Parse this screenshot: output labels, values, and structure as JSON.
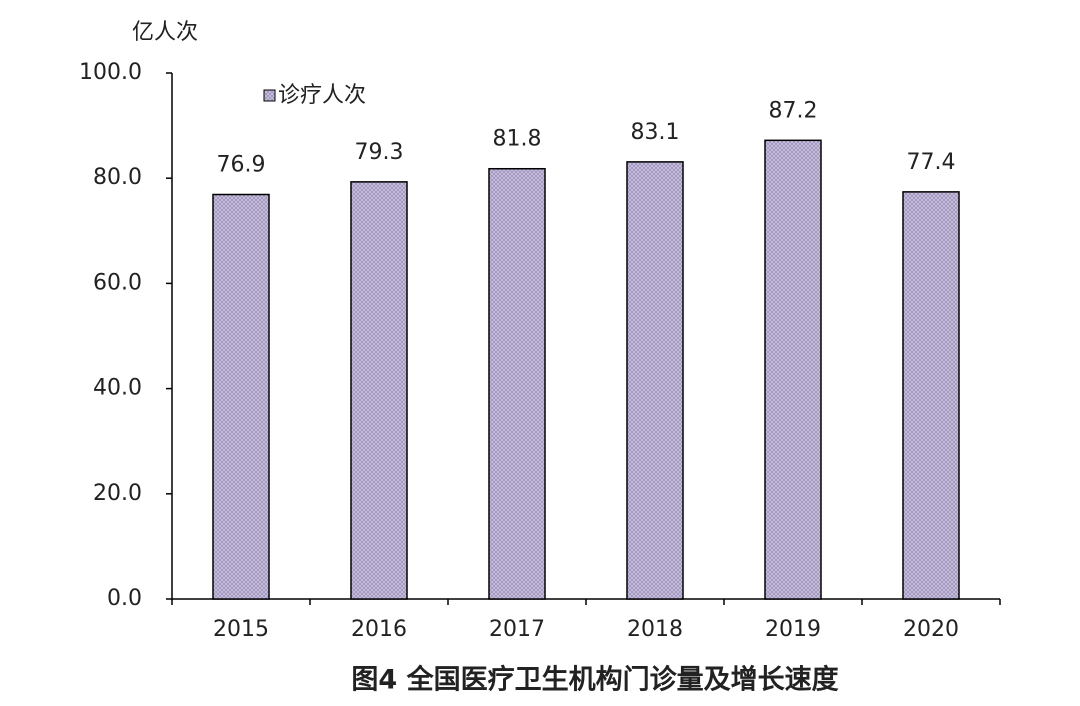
{
  "chart_data": {
    "type": "bar",
    "title": "图4  全国医疗卫生机构门诊量及增长速度",
    "y_label": "亿人次",
    "categories": [
      "2015",
      "2016",
      "2017",
      "2018",
      "2019",
      "2020"
    ],
    "series": [
      {
        "name": "诊疗人次",
        "color": "#c9c0e0",
        "values": [
          76.9,
          79.3,
          81.8,
          83.1,
          87.2,
          77.4
        ]
      }
    ],
    "ylim": [
      0,
      100
    ],
    "yticks": [
      {
        "value": 0,
        "label": "0.0"
      },
      {
        "value": 20,
        "label": "20.0"
      },
      {
        "value": 40,
        "label": "40.0"
      },
      {
        "value": 60,
        "label": "60.0"
      },
      {
        "value": 80,
        "label": "80.0"
      },
      {
        "value": 100,
        "label": "100.0"
      }
    ],
    "legend": "top-left"
  }
}
